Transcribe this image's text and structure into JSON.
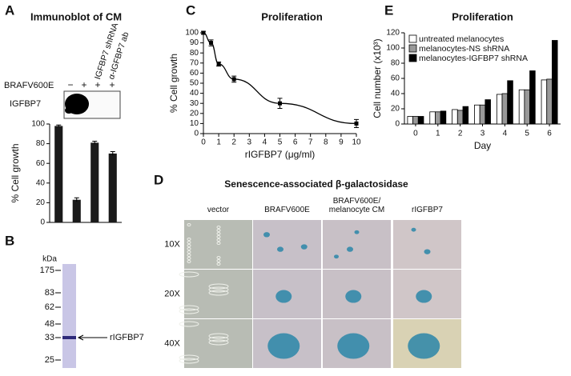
{
  "chart_data": [
    {
      "type": "bar",
      "title": "Immunoblot of CM",
      "y_label": "% Cell growth",
      "categories": [
        null,
        null,
        null,
        null
      ],
      "values": [
        98,
        23,
        81,
        70
      ],
      "errors": [
        1,
        2,
        1.5,
        2
      ],
      "color": "#1a1a1a",
      "ylim": [
        0,
        100
      ],
      "yticks": [
        0,
        20,
        40,
        60,
        80,
        100
      ]
    },
    {
      "type": "line",
      "title": "Proliferation",
      "x_label": "rIGFBP7 (μg/ml)",
      "y_label": "% Cell growth",
      "x": [
        0,
        0.5,
        1,
        2,
        5,
        10
      ],
      "values": [
        100,
        90,
        69,
        54,
        30,
        10
      ],
      "errors": [
        1.5,
        3,
        2,
        3,
        5,
        4
      ],
      "color": "#000000",
      "xlim": [
        0,
        10
      ],
      "xticks": [
        0,
        1,
        2,
        3,
        4,
        5,
        6,
        7,
        8,
        9,
        10
      ],
      "ylim": [
        0,
        100
      ],
      "yticks": [
        0,
        10,
        20,
        30,
        40,
        50,
        60,
        70,
        80,
        90,
        100
      ]
    },
    {
      "type": "grouped-bar",
      "title": "Proliferation",
      "x_label": "Day",
      "y_label": "Cell number (x10³)",
      "categories": [
        "0",
        "1",
        "2",
        "3",
        "4",
        "5",
        "6"
      ],
      "series": [
        {
          "name": "untreated melanocytes",
          "color": "#ffffff",
          "values": [
            10,
            16,
            19,
            25,
            39,
            45,
            58
          ]
        },
        {
          "name": "melanocytes-NS shRNA",
          "color": "#999999",
          "values": [
            10,
            16,
            18,
            25,
            40,
            45,
            59
          ]
        },
        {
          "name": "melanocytes-IGFBP7 shRNA",
          "color": "#000000",
          "values": [
            10,
            17,
            23,
            32,
            57,
            70,
            110
          ]
        }
      ],
      "ylim": [
        0,
        120
      ],
      "yticks": [
        0,
        20,
        40,
        60,
        80,
        100,
        120
      ],
      "legend": "upper left"
    }
  ],
  "panel_labels": [
    "A",
    "B",
    "C",
    "D",
    "E"
  ],
  "blot": {
    "row_label": "BRAFV600E",
    "signs": [
      "−",
      "+",
      "+",
      "+"
    ],
    "lane_labels": [
      "IGFBP7 shRNA",
      "α-IGFBP7 ab"
    ],
    "band_label": "IGFBP7"
  },
  "gel": {
    "unit": "kDa",
    "markers": [
      175,
      83,
      62,
      48,
      33,
      25
    ],
    "band_label": "rIGFBP7"
  },
  "micrographs": {
    "title": "Senescence-associated β-galactosidase",
    "columns": [
      "vector",
      "BRAFV600E",
      "BRAFV600E/ melanocyte CM",
      "rIGFBP7"
    ],
    "rows": [
      "10X",
      "20X",
      "40X"
    ]
  }
}
